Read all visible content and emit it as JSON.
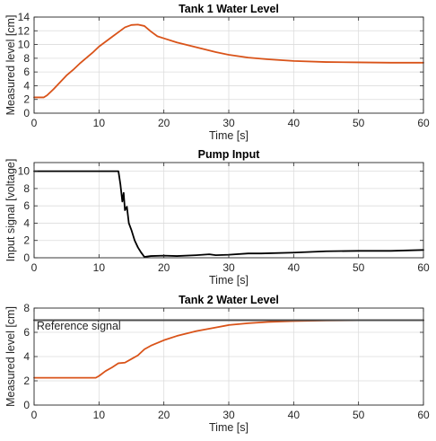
{
  "chart_data": [
    {
      "type": "line",
      "title": "Tank 1 Water Level",
      "xlabel": "Time [s]",
      "ylabel": "Measured level [cm]",
      "xlim": [
        0,
        60
      ],
      "ylim": [
        0,
        14
      ],
      "xticks": [
        0,
        10,
        20,
        30,
        40,
        50,
        60
      ],
      "yticks": [
        0,
        2,
        4,
        6,
        8,
        10,
        12,
        14
      ],
      "grid": true,
      "series": [
        {
          "color": "#D95319",
          "x": [
            0,
            1.5,
            2,
            3,
            4,
            5,
            6,
            7,
            8,
            9,
            10,
            11,
            12,
            13,
            14,
            15,
            16,
            17,
            18,
            19,
            20,
            22,
            25,
            28,
            30,
            33,
            36,
            40,
            45,
            50,
            55,
            60
          ],
          "y": [
            2.3,
            2.3,
            2.6,
            3.5,
            4.5,
            5.5,
            6.3,
            7.2,
            8.0,
            8.8,
            9.7,
            10.4,
            11.1,
            11.8,
            12.5,
            12.85,
            12.9,
            12.7,
            11.9,
            11.2,
            10.9,
            10.3,
            9.6,
            8.9,
            8.5,
            8.1,
            7.85,
            7.6,
            7.45,
            7.4,
            7.35,
            7.35
          ]
        }
      ]
    },
    {
      "type": "line",
      "title": "Pump Input",
      "xlabel": "Time [s]",
      "ylabel": "Input signal [voltage]",
      "xlim": [
        0,
        60
      ],
      "ylim": [
        0,
        11
      ],
      "xticks": [
        0,
        10,
        20,
        30,
        40,
        50,
        60
      ],
      "yticks": [
        0,
        2,
        4,
        6,
        8,
        10
      ],
      "grid": true,
      "series": [
        {
          "color": "#000000",
          "x": [
            0,
            13,
            13.3,
            13.6,
            13.8,
            14,
            14.3,
            14.6,
            15,
            15.5,
            16,
            16.5,
            17,
            18,
            20,
            22,
            25,
            27,
            28,
            30,
            33,
            35,
            40,
            45,
            50,
            55,
            60
          ],
          "y": [
            10,
            10,
            8.5,
            6.5,
            7.5,
            5.5,
            5.9,
            4.0,
            3.2,
            2.0,
            1.2,
            0.6,
            0.1,
            0.2,
            0.25,
            0.2,
            0.3,
            0.4,
            0.3,
            0.35,
            0.5,
            0.5,
            0.6,
            0.75,
            0.8,
            0.8,
            0.9
          ]
        }
      ]
    },
    {
      "type": "line",
      "title": "Tank 2 Water Level",
      "xlabel": "Time [s]",
      "ylabel": "Measured level [cm]",
      "xlim": [
        0,
        60
      ],
      "ylim": [
        0,
        8
      ],
      "xticks": [
        0,
        10,
        20,
        30,
        40,
        50,
        60
      ],
      "yticks": [
        0,
        2,
        4,
        6,
        8
      ],
      "grid": true,
      "annotations": [
        "Reference signal"
      ],
      "series": [
        {
          "color": "#D95319",
          "x": [
            0,
            9.5,
            10,
            11,
            12,
            13,
            14,
            15,
            16,
            17,
            18,
            20,
            22,
            25,
            28,
            30,
            33,
            36,
            40,
            45,
            50,
            55,
            60
          ],
          "y": [
            2.25,
            2.25,
            2.4,
            2.8,
            3.1,
            3.45,
            3.5,
            3.8,
            4.1,
            4.6,
            4.9,
            5.35,
            5.7,
            6.1,
            6.4,
            6.6,
            6.75,
            6.85,
            6.93,
            6.97,
            6.99,
            7.0,
            7.0
          ]
        },
        {
          "color": "#4D4D4D",
          "x": [
            0,
            60
          ],
          "y": [
            7,
            7
          ]
        }
      ]
    }
  ]
}
